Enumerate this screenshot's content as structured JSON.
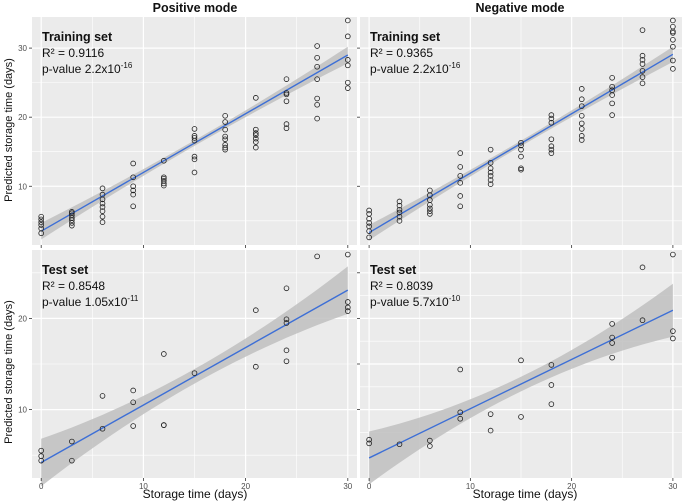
{
  "figure": {
    "col_titles": [
      "Positive mode",
      "Negative mode"
    ],
    "ylabel": "Predicted storage time (days)",
    "xlabel": "Storage time (days)"
  },
  "colors": {
    "panel_bg": "#ebebeb",
    "grid": "#ffffff",
    "ribbon": "#c0c0c0",
    "line": "#3d6fd6",
    "point": "#222222",
    "axis_text": "#4d4d4d"
  },
  "chart_data": [
    {
      "id": "pos-train",
      "type": "scatter",
      "annotation": {
        "title": "Training set",
        "r2": "R² = 0.9116",
        "pvalue": "p-value 2.2x10",
        "exp": "-16"
      },
      "xlim": [
        -0.9,
        30.9
      ],
      "ylim": [
        1.5,
        34.5
      ],
      "xticks": [
        0,
        10,
        20,
        30
      ],
      "yticks": [
        10,
        20,
        30
      ],
      "show_xtick_labels": false,
      "show_ytick_labels": true,
      "fit": {
        "intercept": 3.5,
        "slope": 0.85,
        "band_min": 0.4,
        "band_max": 1.2,
        "band_center": 15
      },
      "x": [
        0,
        0,
        0,
        0,
        0,
        0,
        3,
        3,
        3,
        3,
        3,
        3,
        3,
        6,
        6,
        6,
        6,
        6,
        6,
        6,
        6,
        9,
        9,
        9,
        9,
        9,
        9,
        12,
        12,
        12,
        12,
        12,
        12,
        15,
        15,
        15,
        15,
        15,
        15,
        15,
        18,
        18,
        18,
        18,
        18,
        18,
        18,
        18,
        21,
        21,
        21,
        21,
        21,
        21,
        21,
        24,
        24,
        24,
        24,
        24,
        24,
        27,
        27,
        27,
        27,
        27,
        27,
        27,
        30,
        30,
        30,
        30,
        30,
        30
      ],
      "y": [
        3.2,
        3.9,
        4.4,
        4.8,
        5.2,
        5.6,
        4.3,
        4.7,
        5.1,
        5.4,
        5.8,
        6.1,
        6.3,
        4.8,
        5.6,
        6.4,
        7.0,
        7.5,
        8.1,
        8.8,
        9.7,
        7.1,
        8.8,
        9.4,
        10.0,
        11.3,
        13.3,
        10.1,
        10.4,
        10.8,
        11.1,
        11.3,
        13.7,
        12.0,
        13.9,
        14.3,
        16.6,
        17.0,
        17.3,
        18.3,
        15.3,
        15.6,
        16.0,
        16.8,
        17.2,
        18.2,
        19.3,
        20.2,
        15.6,
        16.4,
        16.9,
        17.4,
        17.7,
        18.2,
        22.8,
        18.4,
        19.0,
        22.3,
        23.3,
        23.5,
        25.5,
        19.8,
        21.8,
        22.7,
        25.5,
        27.3,
        28.6,
        30.3,
        24.2,
        25.0,
        27.5,
        28.3,
        31.7,
        34.0
      ]
    },
    {
      "id": "neg-train",
      "type": "scatter",
      "annotation": {
        "title": "Training set",
        "r2": "R² = 0.9365",
        "pvalue": "p-value 2.2x10",
        "exp": "-16"
      },
      "xlim": [
        -0.9,
        30.9
      ],
      "ylim": [
        1.5,
        34.5
      ],
      "xticks": [
        0,
        10,
        20,
        30
      ],
      "yticks": [
        10,
        20,
        30
      ],
      "show_xtick_labels": false,
      "show_ytick_labels": false,
      "fit": {
        "intercept": 3.3,
        "slope": 0.86,
        "band_min": 0.4,
        "band_max": 1.1,
        "band_center": 15
      },
      "x": [
        0,
        0,
        0,
        0,
        0,
        0,
        0,
        3,
        3,
        3,
        3,
        3,
        3,
        6,
        6,
        6,
        6,
        6,
        6,
        6,
        9,
        9,
        9,
        9,
        9,
        9,
        12,
        12,
        12,
        12,
        12,
        12,
        12,
        15,
        15,
        15,
        15,
        15,
        15,
        18,
        18,
        18,
        18,
        18,
        18,
        18,
        21,
        21,
        21,
        21,
        21,
        21,
        21,
        21,
        24,
        24,
        24,
        24,
        24,
        24,
        27,
        27,
        27,
        27,
        27,
        27,
        27,
        30,
        30,
        30,
        30,
        30,
        30,
        30,
        30
      ],
      "y": [
        2.6,
        3.5,
        4.2,
        4.7,
        5.3,
        6.0,
        6.5,
        5.0,
        5.6,
        6.2,
        6.6,
        7.2,
        7.8,
        6.0,
        6.4,
        6.8,
        7.3,
        8.0,
        8.7,
        9.4,
        7.1,
        8.6,
        10.5,
        11.5,
        12.8,
        14.8,
        10.3,
        10.9,
        11.5,
        12.0,
        12.6,
        13.4,
        15.3,
        12.4,
        12.6,
        14.3,
        15.3,
        15.9,
        16.3,
        14.8,
        15.3,
        15.8,
        16.8,
        19.2,
        19.8,
        20.3,
        16.7,
        17.3,
        18.3,
        19.1,
        20.2,
        21.6,
        22.6,
        24.1,
        20.3,
        22.0,
        23.2,
        23.9,
        24.4,
        25.7,
        24.9,
        25.8,
        26.7,
        27.7,
        28.3,
        28.9,
        32.6,
        27.0,
        28.2,
        30.2,
        31.2,
        32.2,
        32.4,
        33.1,
        34.0
      ]
    },
    {
      "id": "pos-test",
      "type": "scatter",
      "annotation": {
        "title": "Test set",
        "r2": "R² = 0.8548",
        "pvalue": "p-value 1.05x10",
        "exp": "-11"
      },
      "xlim": [
        -0.9,
        30.9
      ],
      "ylim": [
        2.5,
        27.5
      ],
      "xticks": [
        0,
        10,
        20,
        30
      ],
      "yticks": [
        10,
        20
      ],
      "show_xtick_labels": true,
      "show_ytick_labels": true,
      "fit": {
        "intercept": 4.2,
        "slope": 0.63,
        "band_min": 0.8,
        "band_max": 2.6,
        "band_center": 15
      },
      "x": [
        0,
        0,
        0,
        3,
        3,
        6,
        6,
        9,
        9,
        9,
        12,
        12,
        12,
        15,
        21,
        21,
        24,
        24,
        24,
        24,
        24,
        27,
        30,
        30,
        30,
        30
      ],
      "y": [
        4.4,
        4.9,
        5.5,
        4.4,
        6.5,
        7.9,
        11.5,
        8.2,
        10.8,
        12.1,
        8.3,
        8.3,
        16.1,
        14.0,
        14.7,
        20.9,
        15.3,
        16.5,
        19.5,
        19.9,
        23.3,
        26.8,
        20.8,
        21.2,
        21.8,
        27.0
      ]
    },
    {
      "id": "neg-test",
      "type": "scatter",
      "annotation": {
        "title": "Test set",
        "r2": "R² = 0.8039",
        "pvalue": "p-value 5.7x10",
        "exp": "-10"
      },
      "xlim": [
        -0.9,
        30.9
      ],
      "ylim": [
        2.5,
        27.5
      ],
      "xticks": [
        0,
        10,
        20,
        30
      ],
      "yticks": [
        10,
        15,
        20,
        25
      ],
      "show_xtick_labels": true,
      "show_ytick_labels": false,
      "fit": {
        "intercept": 4.7,
        "slope": 0.54,
        "band_min": 0.8,
        "band_max": 2.9,
        "band_center": 15
      },
      "x": [
        0,
        0,
        3,
        6,
        6,
        9,
        9,
        9,
        12,
        12,
        15,
        15,
        18,
        18,
        18,
        24,
        24,
        24,
        24,
        27,
        27,
        30,
        30,
        30
      ],
      "y": [
        6.3,
        6.7,
        6.2,
        6.0,
        6.6,
        9.0,
        9.7,
        14.4,
        7.7,
        9.5,
        9.2,
        15.4,
        10.6,
        12.7,
        14.9,
        15.7,
        17.3,
        17.9,
        19.4,
        19.8,
        25.6,
        17.8,
        18.6,
        27.0
      ]
    }
  ]
}
